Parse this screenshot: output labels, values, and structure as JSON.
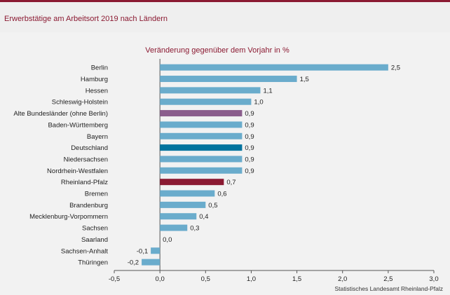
{
  "header": {
    "title": "Erwerbstätige am Arbeitsort 2019 nach Ländern"
  },
  "source": "Statistisches Landesamt Rheinland-Pfalz",
  "colors": {
    "default": "#6aaccc",
    "Alte Bundesländer (ohne Berlin)": "#8a5d8c",
    "Deutschland": "#00739e",
    "Rheinland-Pfalz": "#8b1a32",
    "accent": "#8b1a32"
  },
  "chart_data": {
    "type": "bar",
    "orientation": "horizontal",
    "title": "Veränderung gegenüber dem Vorjahr in %",
    "categories": [
      "Berlin",
      "Hamburg",
      "Hessen",
      "Schleswig-Holstein",
      "Alte Bundesländer (ohne Berlin)",
      "Baden-Württemberg",
      "Bayern",
      "Deutschland",
      "Niedersachsen",
      "Nordrhein-Westfalen",
      "Rheinland-Pfalz",
      "Bremen",
      "Brandenburg",
      "Mecklenburg-Vorpommern",
      "Sachsen",
      "Saarland",
      "Sachsen-Anhalt",
      "Thüringen"
    ],
    "values": [
      2.5,
      1.5,
      1.1,
      1.0,
      0.9,
      0.9,
      0.9,
      0.9,
      0.9,
      0.9,
      0.7,
      0.6,
      0.5,
      0.4,
      0.3,
      0.0,
      -0.1,
      -0.2
    ],
    "value_labels": [
      "2,5",
      "1,5",
      "1,1",
      "1,0",
      "0,9",
      "0,9",
      "0,9",
      "0,9",
      "0,9",
      "0,9",
      "0,7",
      "0,6",
      "0,5",
      "0,4",
      "0,3",
      "0,0",
      "-0,1",
      "-0,2"
    ],
    "xlim": [
      -0.5,
      3.0
    ],
    "xticks": [
      -0.5,
      0,
      0.5,
      1.0,
      1.5,
      2.0,
      2.5,
      3.0
    ],
    "xtick_labels": [
      "-0,5",
      "0,0",
      "0,5",
      "1,0",
      "1,5",
      "2,0",
      "2,5",
      "3,0"
    ],
    "grid": false,
    "legend": "none"
  }
}
